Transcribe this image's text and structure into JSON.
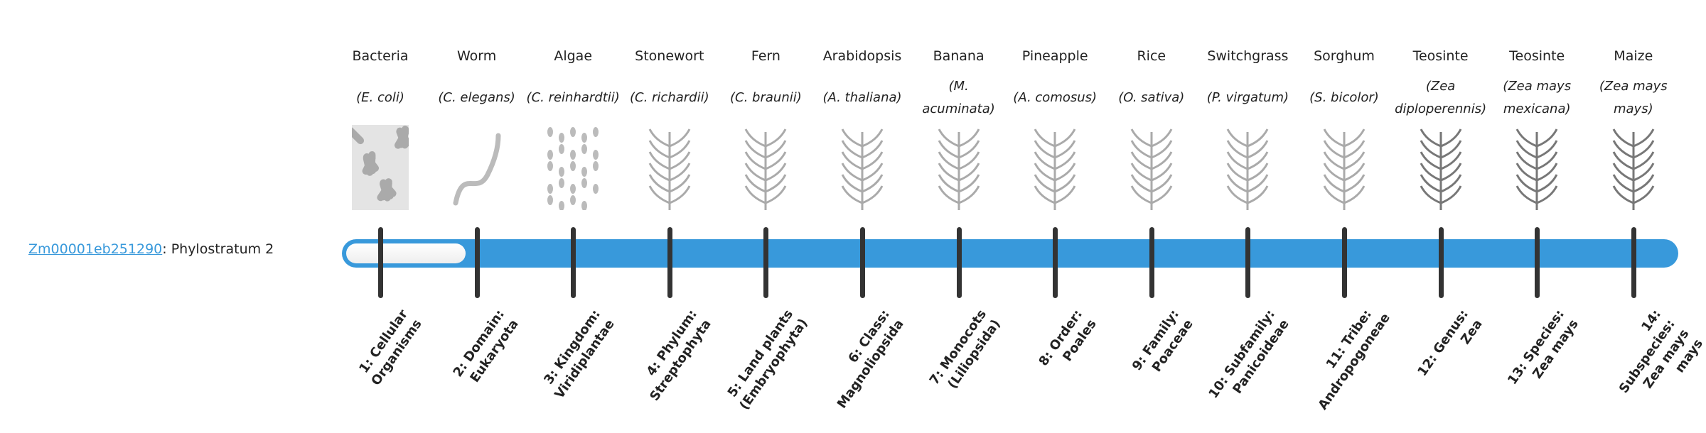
{
  "gene": {
    "id": "Zm00001eb251290",
    "suffix": ": Phylostratum 2"
  },
  "phylostratum": {
    "current": 2,
    "total": 14
  },
  "colors": {
    "bar": "#3899db",
    "tick": "#333333",
    "link": "#3899db"
  },
  "strata": [
    {
      "name": "Bacteria",
      "sci": "(E. coli)",
      "level": "1: Cellular Organisms",
      "icon": "bacteria-icon"
    },
    {
      "name": "Worm",
      "sci": "(C. elegans)",
      "level": "2: Domain: Eukaryota",
      "icon": "worm-icon"
    },
    {
      "name": "Algae",
      "sci": "(C. reinhardtii)",
      "level": "3: Kingdom: Viridiplantae",
      "icon": "algae-icon"
    },
    {
      "name": "Stonewort",
      "sci": "(C. richardii)",
      "level": "4: Phylum: Streptophyta",
      "icon": "stonewort-icon"
    },
    {
      "name": "Fern",
      "sci": "(C. braunii)",
      "level": "5: Land plants (Embryophyta)",
      "icon": "fern-icon"
    },
    {
      "name": "Arabidopsis",
      "sci": "(A. thaliana)",
      "level": "6: Class: Magnoliopsida",
      "icon": "arabidopsis-icon"
    },
    {
      "name": "Banana",
      "sci": "(M. acuminata)",
      "level": "7: Monocots (Liliopsida)",
      "icon": "banana-icon"
    },
    {
      "name": "Pineapple",
      "sci": "(A. comosus)",
      "level": "8: Order: Poales",
      "icon": "pineapple-icon"
    },
    {
      "name": "Rice",
      "sci": "(O. sativa)",
      "level": "9: Family: Poaceae",
      "icon": "rice-icon"
    },
    {
      "name": "Switchgrass",
      "sci": "(P. virgatum)",
      "level": "10: Subfamily: Panicoideae",
      "icon": "switchgrass-icon"
    },
    {
      "name": "Sorghum",
      "sci": "(S. bicolor)",
      "level": "11: Tribe: Andropogoneae",
      "icon": "sorghum-icon"
    },
    {
      "name": "Teosinte",
      "sci": "(Zea diploperennis)",
      "level": "12: Genus: Zea",
      "icon": "teosinte-icon"
    },
    {
      "name": "Teosinte",
      "sci": "(Zea mays mexicana)",
      "level": "13: Species: Zea mays",
      "icon": "teosinte-mexicana-icon"
    },
    {
      "name": "Maize",
      "sci": "(Zea mays mays)",
      "level": "14: Subspecies: Zea mays mays",
      "icon": "maize-icon"
    }
  ]
}
